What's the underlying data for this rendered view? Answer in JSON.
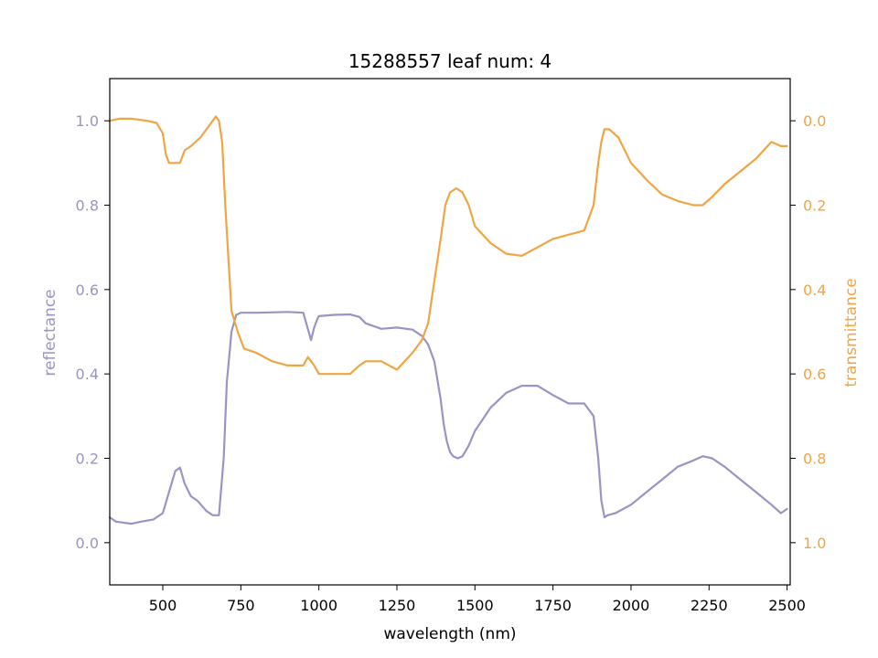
{
  "chart_data": {
    "type": "line",
    "title": "15288557 leaf num: 4",
    "xlabel": "wavelength (nm)",
    "xlim": [
      330,
      2510
    ],
    "xticks": [
      500,
      750,
      1000,
      1250,
      1500,
      1750,
      2000,
      2250,
      2500
    ],
    "xtick_labels": [
      "500",
      "750",
      "1000",
      "1250",
      "1500",
      "1750",
      "2000",
      "2250",
      "2500"
    ],
    "y_left": {
      "label": "reflectance",
      "color": "#9a94c4",
      "lim": [
        -0.1,
        1.1
      ],
      "ticks": [
        0.0,
        0.2,
        0.4,
        0.6,
        0.8,
        1.0
      ],
      "tick_labels": [
        "0.0",
        "0.2",
        "0.4",
        "0.6",
        "0.8",
        "1.0"
      ]
    },
    "y_right": {
      "label": "transmittance",
      "color": "#f0a545",
      "lim": [
        1.1,
        -0.1
      ],
      "inverted": true,
      "ticks": [
        0.0,
        0.2,
        0.4,
        0.6,
        0.8,
        1.0
      ],
      "tick_labels": [
        "0.0",
        "0.2",
        "0.4",
        "0.6",
        "0.8",
        "1.0"
      ]
    },
    "grid": false,
    "series": [
      {
        "axis": "left",
        "color": "#9a94c4",
        "x": [
          330,
          350,
          400,
          430,
          470,
          500,
          520,
          540,
          555,
          570,
          590,
          610,
          640,
          660,
          680,
          695,
          705,
          720,
          735,
          750,
          800,
          850,
          900,
          950,
          975,
          985,
          995,
          1000,
          1050,
          1100,
          1130,
          1150,
          1200,
          1250,
          1300,
          1330,
          1350,
          1370,
          1390,
          1400,
          1410,
          1420,
          1430,
          1445,
          1460,
          1480,
          1500,
          1550,
          1600,
          1650,
          1700,
          1750,
          1800,
          1850,
          1880,
          1895,
          1905,
          1915,
          1925,
          1950,
          2000,
          2050,
          2100,
          2150,
          2200,
          2230,
          2260,
          2300,
          2350,
          2400,
          2450,
          2480,
          2500
        ],
        "y": [
          0.06,
          0.05,
          0.045,
          0.05,
          0.055,
          0.07,
          0.12,
          0.17,
          0.178,
          0.14,
          0.11,
          0.1,
          0.075,
          0.065,
          0.065,
          0.2,
          0.38,
          0.5,
          0.54,
          0.545,
          0.545,
          0.546,
          0.547,
          0.545,
          0.48,
          0.51,
          0.53,
          0.537,
          0.54,
          0.541,
          0.535,
          0.52,
          0.507,
          0.51,
          0.505,
          0.49,
          0.47,
          0.43,
          0.34,
          0.28,
          0.24,
          0.215,
          0.205,
          0.2,
          0.205,
          0.23,
          0.265,
          0.32,
          0.355,
          0.372,
          0.372,
          0.35,
          0.33,
          0.33,
          0.3,
          0.2,
          0.1,
          0.06,
          0.065,
          0.07,
          0.09,
          0.12,
          0.15,
          0.18,
          0.195,
          0.205,
          0.2,
          0.18,
          0.15,
          0.12,
          0.09,
          0.07,
          0.08
        ]
      },
      {
        "axis": "right",
        "color": "#f0a545",
        "x": [
          330,
          360,
          400,
          450,
          480,
          500,
          510,
          520,
          540,
          555,
          570,
          590,
          620,
          650,
          670,
          680,
          690,
          700,
          720,
          740,
          760,
          800,
          850,
          900,
          950,
          965,
          975,
          985,
          1000,
          1050,
          1100,
          1130,
          1150,
          1200,
          1250,
          1300,
          1330,
          1350,
          1370,
          1390,
          1405,
          1420,
          1440,
          1460,
          1480,
          1500,
          1550,
          1600,
          1650,
          1700,
          1750,
          1800,
          1850,
          1880,
          1895,
          1905,
          1915,
          1930,
          1960,
          2000,
          2050,
          2100,
          2150,
          2200,
          2230,
          2260,
          2300,
          2350,
          2400,
          2450,
          2480,
          2500
        ],
        "y": [
          0.0,
          -0.005,
          -0.005,
          0.0,
          0.005,
          0.03,
          0.08,
          0.1,
          0.1,
          0.1,
          0.07,
          0.06,
          0.04,
          0.01,
          -0.01,
          0.0,
          0.05,
          0.2,
          0.45,
          0.5,
          0.54,
          0.55,
          0.57,
          0.58,
          0.58,
          0.56,
          0.57,
          0.58,
          0.6,
          0.6,
          0.6,
          0.58,
          0.57,
          0.57,
          0.59,
          0.55,
          0.52,
          0.48,
          0.38,
          0.28,
          0.2,
          0.17,
          0.16,
          0.17,
          0.2,
          0.25,
          0.29,
          0.315,
          0.32,
          0.3,
          0.28,
          0.27,
          0.26,
          0.2,
          0.1,
          0.05,
          0.02,
          0.02,
          0.04,
          0.1,
          0.14,
          0.175,
          0.19,
          0.2,
          0.2,
          0.18,
          0.15,
          0.12,
          0.09,
          0.05,
          0.06,
          0.06
        ]
      }
    ]
  }
}
